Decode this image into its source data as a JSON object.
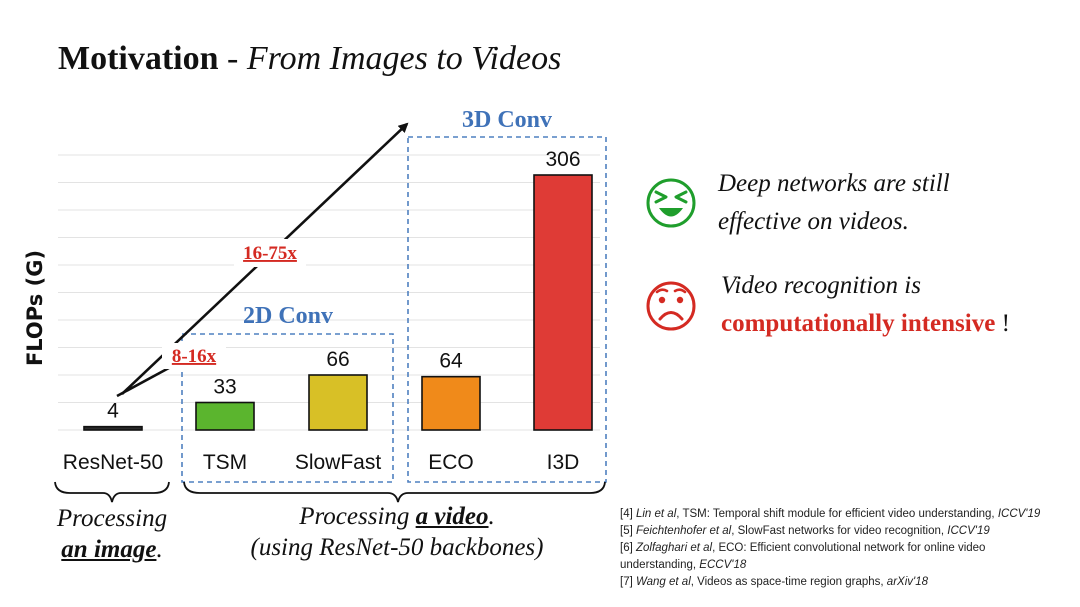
{
  "slide": {
    "title_bold": "Motivation",
    "title_sep": " - ",
    "title_italic": "From Images to Videos"
  },
  "chart_data": {
    "type": "bar",
    "categories": [
      "ResNet-50",
      "TSM",
      "SlowFast",
      "ECO",
      "I3D"
    ],
    "values": [
      4,
      33,
      66,
      64,
      306
    ],
    "data_labels": [
      "4",
      "33",
      "66",
      "64",
      "306"
    ],
    "colors": [
      "#2b2b2b",
      "#5bb52e",
      "#d8c026",
      "#f08a1a",
      "#df3b36"
    ],
    "ylabel": "FLOPs (G)",
    "ylim": [
      0,
      330
    ],
    "grid": true,
    "groups": [
      {
        "label": "2D Conv",
        "members": [
          "TSM",
          "SlowFast"
        ]
      },
      {
        "label": "3D Conv",
        "members": [
          "ECO",
          "I3D"
        ]
      }
    ],
    "arrow_labels": [
      "8-16x",
      "16-75x"
    ]
  },
  "right_panel": {
    "happy_line1": "Deep networks are still",
    "happy_line2": "effective on videos.",
    "sad_line1": "Video recognition is",
    "sad_bold": "computationally intensive",
    "sad_end": " !",
    "happy_icon": "laughing-face-icon",
    "sad_icon": "worried-face-icon",
    "happy_color": "#1f9e2c",
    "sad_color": "#d42a22"
  },
  "processing": {
    "image_line1": "Processing",
    "image_line2_u": "an image",
    "image_line2_end": ".",
    "video_line1": "Processing ",
    "video_line1_u": "a video",
    "video_line1_end": ".",
    "video_line2": "(using ResNet-50 backbones)"
  },
  "references": [
    {
      "num": "[4] ",
      "auth": "Lin et al",
      "text": ", TSM: Temporal shift module for efficient video understanding, ",
      "venue": "ICCV'19"
    },
    {
      "num": "[5] ",
      "auth": "Feichtenhofer et al",
      "text": ", SlowFast networks for video recognition, ",
      "venue": "ICCV'19"
    },
    {
      "num": "[6] ",
      "auth": "Zolfaghari et al",
      "text": ", ECO: Efficient convolutional network for online video",
      "venue": ""
    },
    {
      "num": "",
      "auth": "",
      "text": "understanding, ",
      "venue": "ECCV'18"
    },
    {
      "num": "[7] ",
      "auth": "Wang et al",
      "text": ", Videos as space-time region graphs, ",
      "venue": "arXiv'18"
    }
  ]
}
